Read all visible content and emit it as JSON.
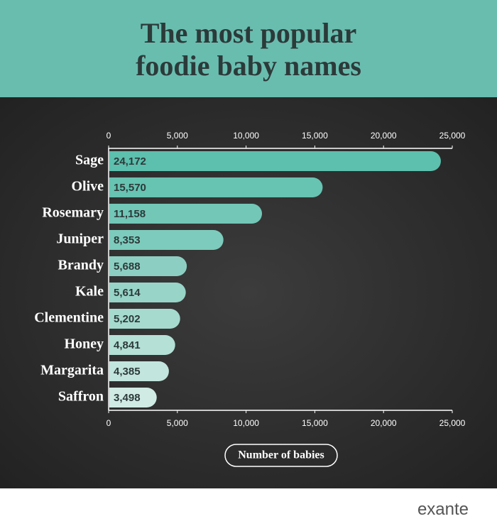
{
  "chart_data": {
    "type": "bar",
    "orientation": "horizontal",
    "title": "The most popular foodie baby names",
    "categories": [
      "Sage",
      "Olive",
      "Rosemary",
      "Juniper",
      "Brandy",
      "Kale",
      "Clementine",
      "Honey",
      "Margarita",
      "Saffron"
    ],
    "values": [
      24172,
      15570,
      11158,
      8353,
      5688,
      5614,
      5202,
      4841,
      4385,
      3498
    ],
    "value_labels": [
      "24,172",
      "15,570",
      "11,158",
      "8,353",
      "5,688",
      "5,614",
      "5,202",
      "4,841",
      "4,385",
      "3,498"
    ],
    "colors": [
      "#5dbfad",
      "#67c3b2",
      "#72c7b7",
      "#7dcbbc",
      "#8ccfc2",
      "#98d4c8",
      "#a6dacf",
      "#b4e0d6",
      "#c2e5dd",
      "#d0ebe4"
    ],
    "xlim": [
      0,
      25000
    ],
    "xticks": [
      0,
      {
        "value": 5000,
        "label": "5,000"
      },
      {
        "value": 10000,
        "label": "10,000"
      },
      {
        "value": 15000,
        "label": "15,000"
      },
      {
        "value": 20000,
        "label": "20,000"
      },
      {
        "value": 25000,
        "label": "25,000"
      }
    ],
    "x_label": "Number of babies",
    "brand": "exante"
  }
}
